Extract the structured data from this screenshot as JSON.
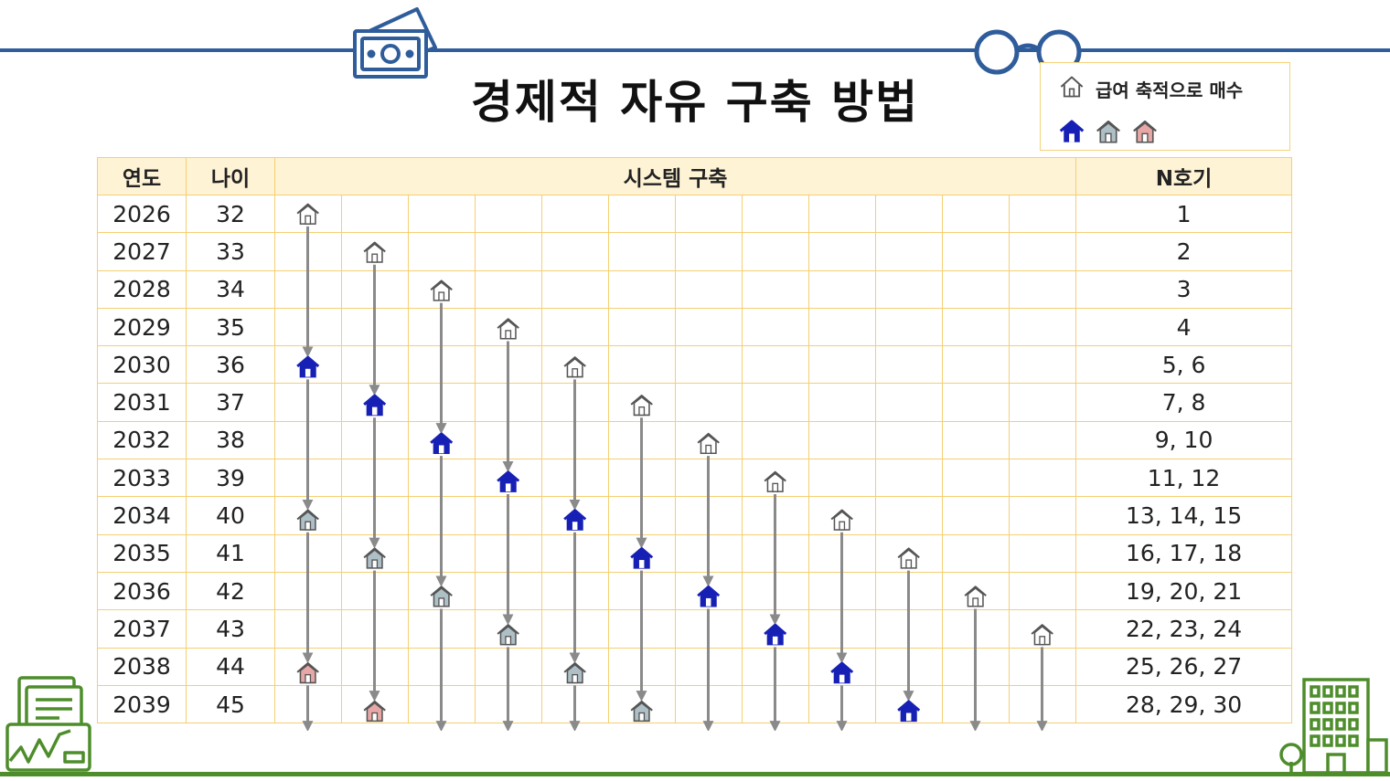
{
  "title": "경제적 자유 구축 방법",
  "legend": {
    "label": "급여 축적으로 매수"
  },
  "table": {
    "headers": {
      "year": "연도",
      "age": "나이",
      "system": "시스템 구축",
      "n": "N호기"
    },
    "rows": [
      {
        "year": "2026",
        "age": "32",
        "n": "1"
      },
      {
        "year": "2027",
        "age": "33",
        "n": "2"
      },
      {
        "year": "2028",
        "age": "34",
        "n": "3"
      },
      {
        "year": "2029",
        "age": "35",
        "n": "4"
      },
      {
        "year": "2030",
        "age": "36",
        "n": "5, 6"
      },
      {
        "year": "2031",
        "age": "37",
        "n": "7, 8"
      },
      {
        "year": "2032",
        "age": "38",
        "n": "9, 10"
      },
      {
        "year": "2033",
        "age": "39",
        "n": "11, 12"
      },
      {
        "year": "2034",
        "age": "40",
        "n": "13, 14, 15"
      },
      {
        "year": "2035",
        "age": "41",
        "n": "16, 17, 18"
      },
      {
        "year": "2036",
        "age": "42",
        "n": "19, 20, 21"
      },
      {
        "year": "2037",
        "age": "43",
        "n": "22, 23, 24"
      },
      {
        "year": "2038",
        "age": "44",
        "n": "25, 26, 27"
      },
      {
        "year": "2039",
        "age": "45",
        "n": "28, 29, 30"
      }
    ]
  },
  "house_types": [
    "white",
    "blue",
    "gray",
    "pink"
  ],
  "colors": {
    "blue_house": "#1620b4",
    "gray_house": "#aebfc6",
    "pink_house": "#e8a7a7",
    "arrow": "#8a8a8a",
    "grid_border": "#f5cf72",
    "header_fill": "#fff3d6",
    "accent_blue": "#2f5d9b",
    "accent_green": "#4e8d2b"
  },
  "houses": [
    {
      "row": 0,
      "col": 0,
      "type": "white"
    },
    {
      "row": 1,
      "col": 1,
      "type": "white"
    },
    {
      "row": 2,
      "col": 2,
      "type": "white"
    },
    {
      "row": 3,
      "col": 3,
      "type": "white"
    },
    {
      "row": 4,
      "col": 0,
      "type": "blue"
    },
    {
      "row": 4,
      "col": 4,
      "type": "white"
    },
    {
      "row": 5,
      "col": 1,
      "type": "blue"
    },
    {
      "row": 5,
      "col": 5,
      "type": "white"
    },
    {
      "row": 6,
      "col": 2,
      "type": "blue"
    },
    {
      "row": 6,
      "col": 6,
      "type": "white"
    },
    {
      "row": 7,
      "col": 3,
      "type": "blue"
    },
    {
      "row": 7,
      "col": 7,
      "type": "white"
    },
    {
      "row": 8,
      "col": 0,
      "type": "gray"
    },
    {
      "row": 8,
      "col": 4,
      "type": "blue"
    },
    {
      "row": 8,
      "col": 8,
      "type": "white"
    },
    {
      "row": 9,
      "col": 1,
      "type": "gray"
    },
    {
      "row": 9,
      "col": 5,
      "type": "blue"
    },
    {
      "row": 9,
      "col": 9,
      "type": "white"
    },
    {
      "row": 10,
      "col": 2,
      "type": "gray"
    },
    {
      "row": 10,
      "col": 6,
      "type": "blue"
    },
    {
      "row": 10,
      "col": 10,
      "type": "white"
    },
    {
      "row": 11,
      "col": 3,
      "type": "gray"
    },
    {
      "row": 11,
      "col": 7,
      "type": "blue"
    },
    {
      "row": 11,
      "col": 11,
      "type": "white"
    },
    {
      "row": 12,
      "col": 0,
      "type": "pink"
    },
    {
      "row": 12,
      "col": 4,
      "type": "gray"
    },
    {
      "row": 12,
      "col": 8,
      "type": "blue"
    },
    {
      "row": 13,
      "col": 1,
      "type": "pink"
    },
    {
      "row": 13,
      "col": 5,
      "type": "gray"
    },
    {
      "row": 13,
      "col": 9,
      "type": "blue"
    }
  ]
}
